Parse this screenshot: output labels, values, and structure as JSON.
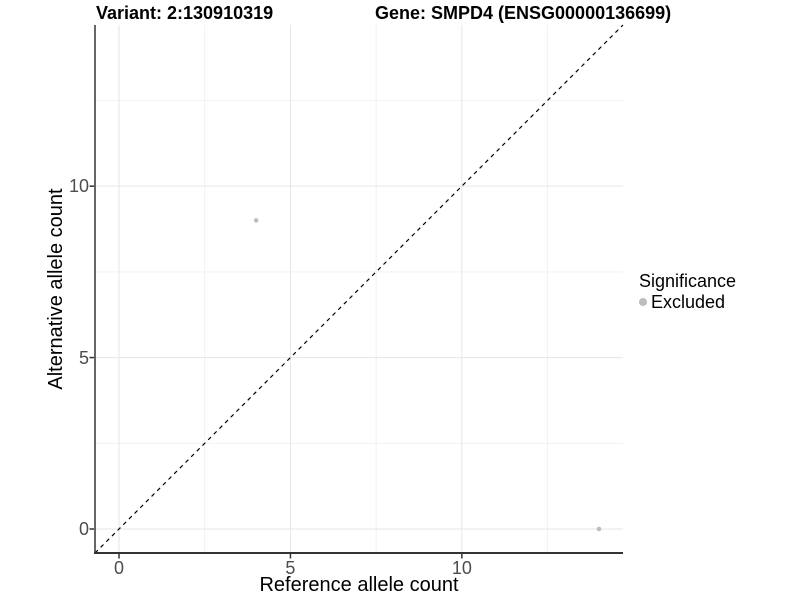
{
  "titles": {
    "variant": "Variant: 2:130910319",
    "gene": "Gene: SMPD4 (ENSG00000136699)"
  },
  "chart_data": {
    "type": "scatter",
    "title_left": "Variant: 2:130910319",
    "title_right": "Gene: SMPD4 (ENSG00000136699)",
    "xlabel": "Reference allele count",
    "ylabel": "Alternative allele count",
    "xlim": [
      -0.7,
      14.7
    ],
    "ylim": [
      -0.7,
      14.7
    ],
    "x_major_ticks": [
      0,
      5,
      10
    ],
    "y_major_ticks": [
      0,
      5,
      10
    ],
    "x_minor_ticks": [
      2.5,
      7.5,
      12.5
    ],
    "y_minor_ticks": [
      2.5,
      7.5,
      12.5
    ],
    "grid": true,
    "series": [
      {
        "name": "Excluded",
        "color": "#bdbdbd",
        "points": [
          {
            "x": 4,
            "y": 9
          },
          {
            "x": 14,
            "y": 0
          }
        ]
      }
    ],
    "reference_line": {
      "style": "dashed",
      "from": [
        -0.7,
        -0.7
      ],
      "to": [
        14.7,
        14.7
      ],
      "color": "#000000",
      "meaning": "y = x identity line"
    },
    "legend": {
      "position": "right",
      "title": "Significance",
      "items": [
        {
          "label": "Excluded",
          "color": "#bdbdbd"
        }
      ]
    }
  },
  "colors": {
    "background": "#ffffff",
    "grid_major": "#e6e6e6",
    "grid_minor": "#f2f2f2",
    "axis_line": "#333333",
    "tick_mark": "#333333",
    "tick_label": "#4d4d4d",
    "point": "#bdbdbd",
    "text": "#000000"
  }
}
